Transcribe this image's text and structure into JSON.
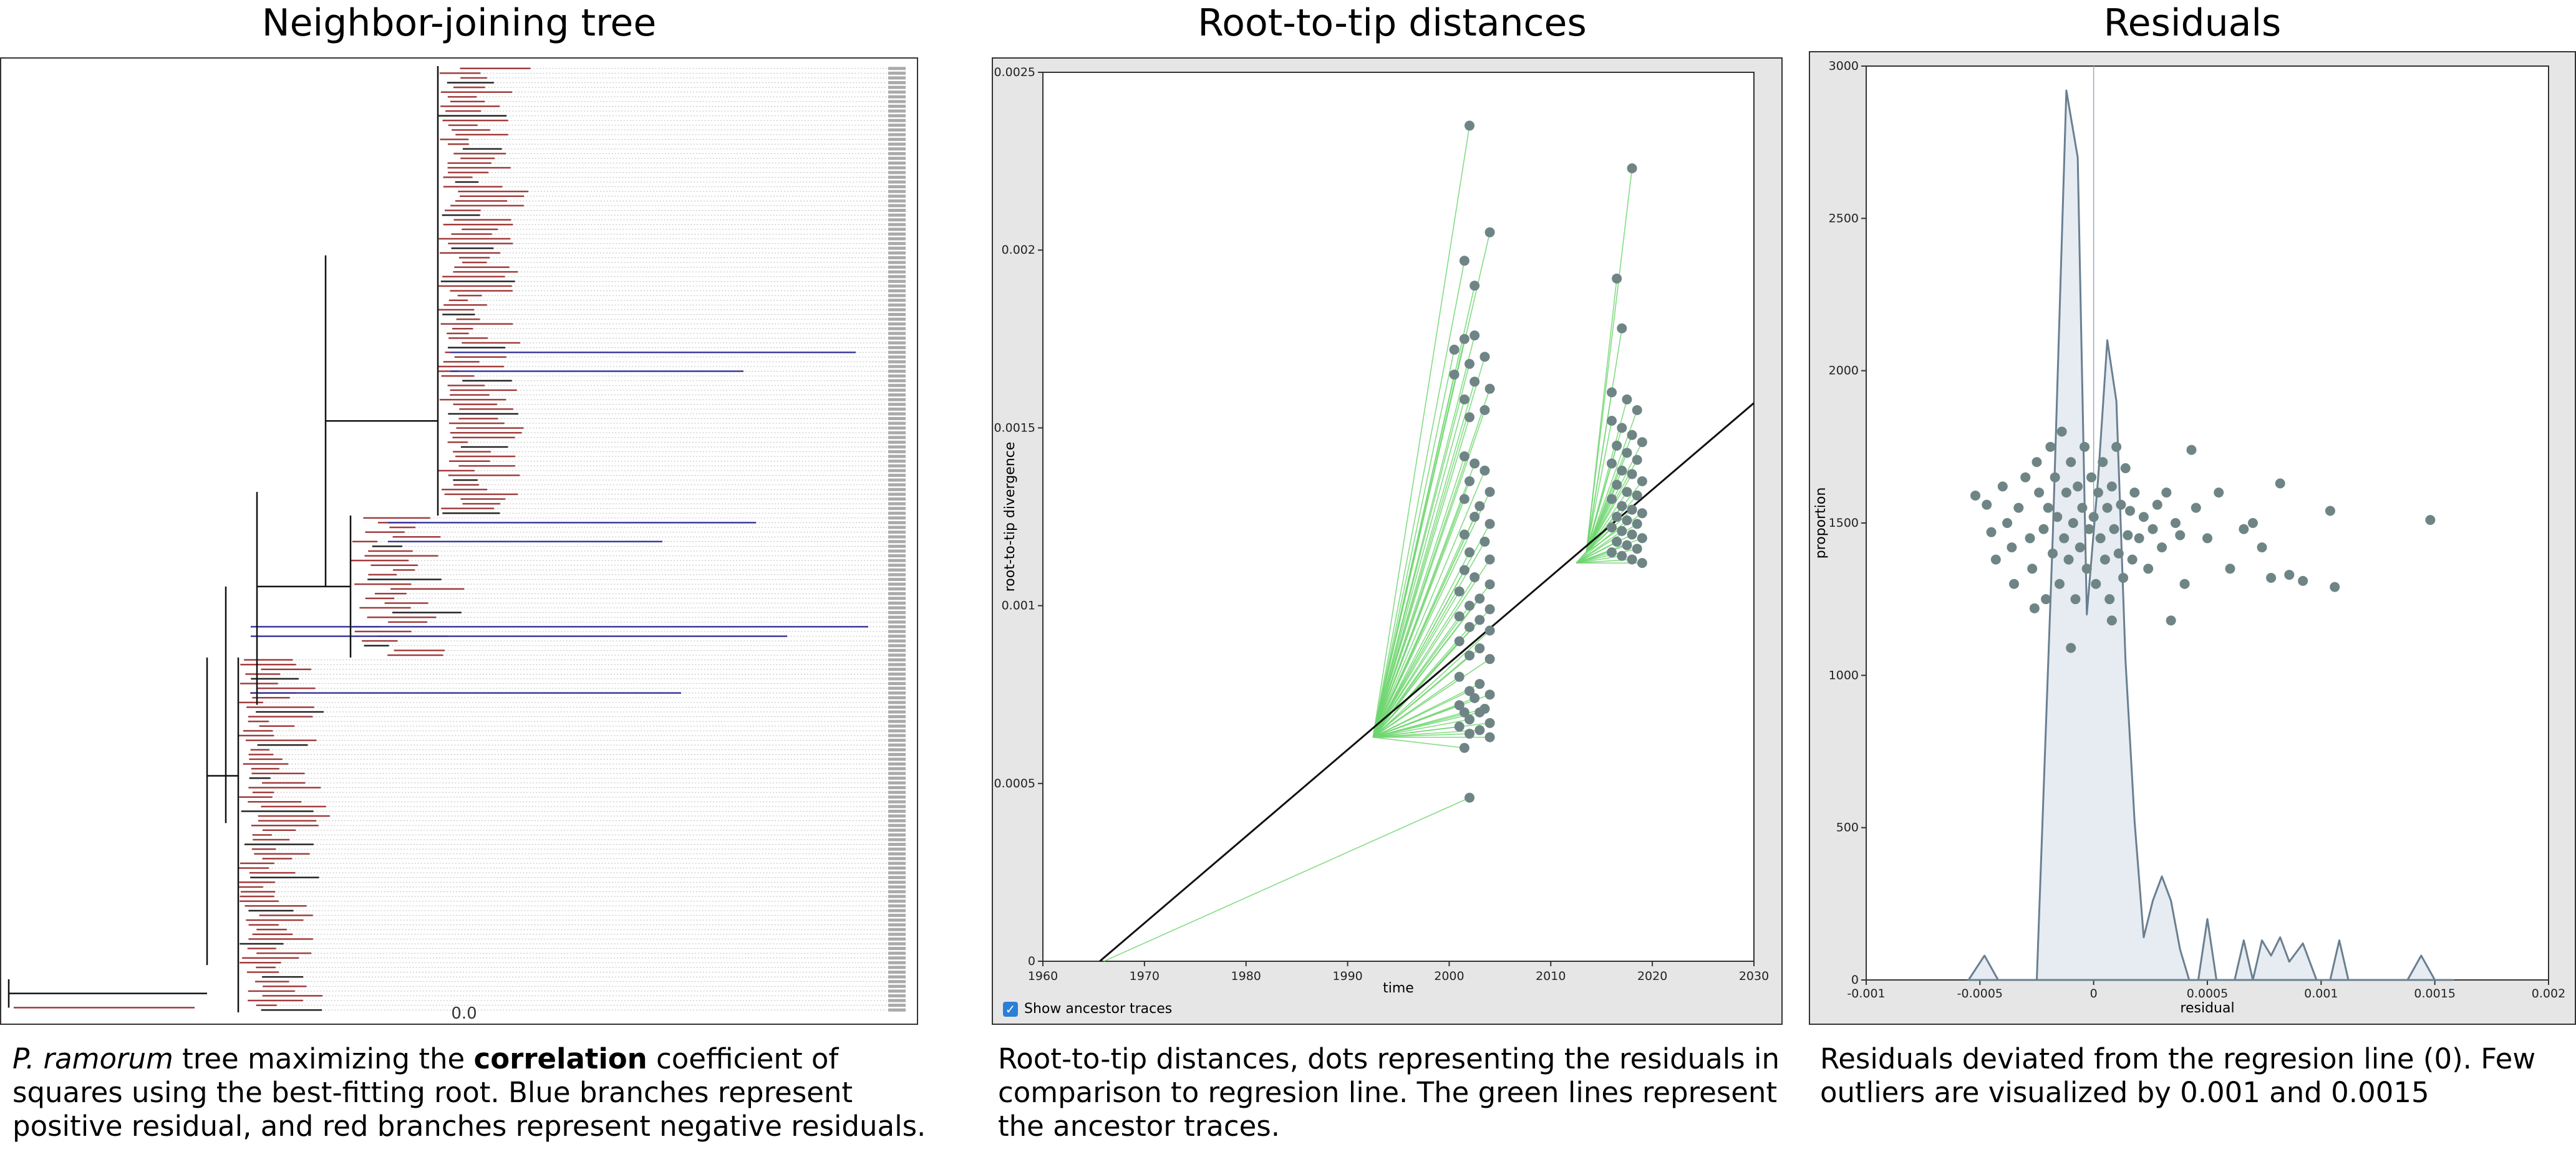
{
  "panels": {
    "tree": {
      "title": "Neighbor-joining tree",
      "scale_label": "0.0",
      "caption": {
        "italic": "P. ramorum",
        "pre": " tree maximizing the ",
        "bold": "correlation",
        "post": " coefficient of squares using the best-fitting root. Blue branches represent positive residual, and red branches represent negative residuals."
      }
    },
    "rtt": {
      "title": "Root-to-tip distances",
      "checkbox_label": "Show ancestor traces",
      "caption": "Root-to-tip distances, dots representing the residuals in comparison to regresion line. The green lines represent the ancestor traces."
    },
    "resid": {
      "title": "Residuals",
      "caption": "Residuals deviated from the regresion line (0). Few outliers are visualized by 0.001 and 0.0015"
    }
  },
  "colors": {
    "negative_branch": "#a03c3c",
    "positive_branch": "#3a3a9a",
    "trace": "#6fd66f",
    "dot": "#6f8585",
    "density_fill": "#e6ecf2",
    "density_line": "#6a7f91"
  },
  "chart_data": [
    {
      "type": "line",
      "subtype": "phylogenetic-tree",
      "title": "Neighbor-joining tree",
      "scale_bar": "0.0"
    },
    {
      "type": "scatter",
      "title": "Root-to-tip distances",
      "xlabel": "time",
      "ylabel": "root-to-tip divergence",
      "xlim": [
        1960,
        2030
      ],
      "ylim": [
        0,
        0.0025
      ],
      "xticks": [
        "1960",
        "1970",
        "1980",
        "1990",
        "2000",
        "2010",
        "2020",
        "2030"
      ],
      "yticks": [
        "0",
        "0.0005",
        "0.001",
        "0.0015",
        "0.002",
        "0.0025"
      ],
      "regression_line": [
        [
          1965.6,
          0
        ],
        [
          2030,
          0.00157
        ]
      ],
      "ancestor_nodes": [
        [
          1992.5,
          0.00063
        ],
        [
          2012.5,
          0.00112
        ],
        [
          2013.5,
          0.00115
        ]
      ],
      "points": [
        [
          2002,
          0.00235
        ],
        [
          2004,
          0.00205
        ],
        [
          2001.5,
          0.00197
        ],
        [
          2002.5,
          0.0019
        ],
        [
          2001.5,
          0.00175
        ],
        [
          2002.5,
          0.00176
        ],
        [
          2000.5,
          0.00172
        ],
        [
          2003.5,
          0.0017
        ],
        [
          2002,
          0.00168
        ],
        [
          2000.5,
          0.00165
        ],
        [
          2002.5,
          0.00163
        ],
        [
          2004,
          0.00161
        ],
        [
          2001.5,
          0.00158
        ],
        [
          2003.5,
          0.00155
        ],
        [
          2002,
          0.00153
        ],
        [
          2001.5,
          0.00142
        ],
        [
          2002.5,
          0.0014
        ],
        [
          2003.5,
          0.00138
        ],
        [
          2002,
          0.00135
        ],
        [
          2004,
          0.00132
        ],
        [
          2001.5,
          0.0013
        ],
        [
          2003,
          0.00128
        ],
        [
          2002.5,
          0.00125
        ],
        [
          2004,
          0.00123
        ],
        [
          2001.5,
          0.0012
        ],
        [
          2003.5,
          0.00118
        ],
        [
          2002,
          0.00115
        ],
        [
          2004,
          0.00113
        ],
        [
          2001.5,
          0.0011
        ],
        [
          2002.5,
          0.00108
        ],
        [
          2004,
          0.00106
        ],
        [
          2001,
          0.00104
        ],
        [
          2003,
          0.00102
        ],
        [
          2002,
          0.001
        ],
        [
          2004,
          0.00099
        ],
        [
          2001,
          0.00097
        ],
        [
          2003,
          0.00096
        ],
        [
          2002,
          0.00094
        ],
        [
          2004,
          0.00093
        ],
        [
          2001,
          0.0009
        ],
        [
          2003,
          0.00088
        ],
        [
          2002,
          0.00086
        ],
        [
          2004,
          0.00085
        ],
        [
          2001,
          0.0008
        ],
        [
          2003,
          0.00078
        ],
        [
          2002,
          0.00076
        ],
        [
          2004,
          0.00075
        ],
        [
          2001,
          0.00072
        ],
        [
          2003,
          0.0007
        ],
        [
          2002,
          0.00068
        ],
        [
          2004,
          0.00067
        ],
        [
          2001,
          0.00066
        ],
        [
          2003,
          0.00065
        ],
        [
          2002,
          0.00064
        ],
        [
          2004,
          0.00063
        ],
        [
          2001.5,
          0.0007
        ],
        [
          2002.5,
          0.00074
        ],
        [
          2003.5,
          0.00071
        ],
        [
          2001.5,
          0.0006
        ],
        [
          2002,
          0.00046
        ],
        [
          2018,
          0.00223
        ],
        [
          2016.5,
          0.00192
        ],
        [
          2017,
          0.00178
        ],
        [
          2016,
          0.0016
        ],
        [
          2017.5,
          0.00158
        ],
        [
          2018.5,
          0.00155
        ],
        [
          2016,
          0.00152
        ],
        [
          2017,
          0.0015
        ],
        [
          2018,
          0.00148
        ],
        [
          2019,
          0.00146
        ],
        [
          2016.5,
          0.00145
        ],
        [
          2017.5,
          0.00143
        ],
        [
          2018.5,
          0.00141
        ],
        [
          2016,
          0.0014
        ],
        [
          2017,
          0.00138
        ],
        [
          2018,
          0.00137
        ],
        [
          2019,
          0.00135
        ],
        [
          2016.5,
          0.00134
        ],
        [
          2017.5,
          0.00132
        ],
        [
          2018.5,
          0.00131
        ],
        [
          2016,
          0.0013
        ],
        [
          2017,
          0.00128
        ],
        [
          2018,
          0.00127
        ],
        [
          2019,
          0.00126
        ],
        [
          2016.5,
          0.00125
        ],
        [
          2017.5,
          0.00124
        ],
        [
          2018.5,
          0.00123
        ],
        [
          2016,
          0.00122
        ],
        [
          2017,
          0.00121
        ],
        [
          2018,
          0.0012
        ],
        [
          2019,
          0.00119
        ],
        [
          2016.5,
          0.00118
        ],
        [
          2017.5,
          0.00117
        ],
        [
          2018.5,
          0.00116
        ],
        [
          2016,
          0.00115
        ],
        [
          2017,
          0.00114
        ],
        [
          2018,
          0.00113
        ],
        [
          2019,
          0.00112
        ]
      ],
      "checkbox": "Show ancestor traces"
    },
    {
      "type": "area",
      "title": "Residuals",
      "xlabel": "residual",
      "ylabel": "proportion",
      "xlim": [
        -0.001,
        0.002
      ],
      "ylim": [
        0,
        3000
      ],
      "xticks": [
        "-0.001",
        "-0.0005",
        "0",
        "0.0005",
        "0.001",
        "0.0015",
        "0.002"
      ],
      "yticks": [
        "0",
        "500",
        "1000",
        "1500",
        "2000",
        "2500",
        "3000"
      ],
      "density": [
        [
          -0.00055,
          0
        ],
        [
          -0.00048,
          80
        ],
        [
          -0.00042,
          0
        ],
        [
          -0.00025,
          0
        ],
        [
          -0.00018,
          1450
        ],
        [
          -0.00012,
          2920
        ],
        [
          -7e-05,
          2700
        ],
        [
          -3e-05,
          1200
        ],
        [
          2e-05,
          1650
        ],
        [
          6e-05,
          2100
        ],
        [
          0.0001,
          1900
        ],
        [
          0.00014,
          1050
        ],
        [
          0.00018,
          520
        ],
        [
          0.00022,
          140
        ],
        [
          0.00026,
          260
        ],
        [
          0.0003,
          340
        ],
        [
          0.00034,
          260
        ],
        [
          0.00038,
          100
        ],
        [
          0.00042,
          0
        ],
        [
          0.00046,
          0
        ],
        [
          0.0005,
          200
        ],
        [
          0.00054,
          0
        ],
        [
          0.00062,
          0
        ],
        [
          0.00066,
          130
        ],
        [
          0.0007,
          0
        ],
        [
          0.00074,
          130
        ],
        [
          0.00078,
          80
        ],
        [
          0.00082,
          140
        ],
        [
          0.00086,
          60
        ],
        [
          0.00092,
          120
        ],
        [
          0.00098,
          0
        ],
        [
          0.00104,
          0
        ],
        [
          0.00108,
          130
        ],
        [
          0.00112,
          0
        ],
        [
          0.00138,
          0
        ],
        [
          0.00144,
          80
        ],
        [
          0.0015,
          0
        ],
        [
          0.00158,
          0
        ]
      ],
      "points": [
        [
          -0.00052,
          1590
        ],
        [
          -0.00047,
          1560
        ],
        [
          -0.00045,
          1470
        ],
        [
          -0.00043,
          1380
        ],
        [
          -0.0004,
          1620
        ],
        [
          -0.00038,
          1500
        ],
        [
          -0.00036,
          1420
        ],
        [
          -0.00035,
          1300
        ],
        [
          -0.00033,
          1550
        ],
        [
          -0.0003,
          1650
        ],
        [
          -0.00028,
          1450
        ],
        [
          -0.00027,
          1350
        ],
        [
          -0.00025,
          1700
        ],
        [
          -0.00024,
          1600
        ],
        [
          -0.00022,
          1480
        ],
        [
          -0.00021,
          1250
        ],
        [
          -0.0002,
          1550
        ],
        [
          -0.00019,
          1750
        ],
        [
          -0.00018,
          1400
        ],
        [
          -0.00017,
          1650
        ],
        [
          -0.00016,
          1520
        ],
        [
          -0.00015,
          1300
        ],
        [
          -0.00014,
          1800
        ],
        [
          -0.00013,
          1450
        ],
        [
          -0.00012,
          1600
        ],
        [
          -0.00011,
          1380
        ],
        [
          -0.0001,
          1700
        ],
        [
          -9e-05,
          1500
        ],
        [
          -8e-05,
          1250
        ],
        [
          -7e-05,
          1620
        ],
        [
          -6e-05,
          1420
        ],
        [
          -5e-05,
          1550
        ],
        [
          -4e-05,
          1750
        ],
        [
          -3e-05,
          1350
        ],
        [
          -2e-05,
          1480
        ],
        [
          -1e-05,
          1650
        ],
        [
          0,
          1520
        ],
        [
          1e-05,
          1300
        ],
        [
          2e-05,
          1600
        ],
        [
          3e-05,
          1450
        ],
        [
          4e-05,
          1700
        ],
        [
          5e-05,
          1380
        ],
        [
          6e-05,
          1550
        ],
        [
          7e-05,
          1250
        ],
        [
          8e-05,
          1620
        ],
        [
          9e-05,
          1480
        ],
        [
          0.0001,
          1750
        ],
        [
          0.00011,
          1400
        ],
        [
          0.00012,
          1560
        ],
        [
          0.00013,
          1320
        ],
        [
          0.00014,
          1680
        ],
        [
          0.00015,
          1460
        ],
        [
          0.00016,
          1540
        ],
        [
          0.00017,
          1380
        ],
        [
          0.00018,
          1600
        ],
        [
          0.0002,
          1450
        ],
        [
          0.00022,
          1520
        ],
        [
          0.00024,
          1350
        ],
        [
          0.00026,
          1480
        ],
        [
          0.00028,
          1560
        ],
        [
          0.0003,
          1420
        ],
        [
          0.00032,
          1600
        ],
        [
          0.00034,
          1180
        ],
        [
          0.00036,
          1500
        ],
        [
          0.00038,
          1460
        ],
        [
          0.0004,
          1300
        ],
        [
          0.00043,
          1740
        ],
        [
          0.00045,
          1550
        ],
        [
          0.0005,
          1450
        ],
        [
          0.00055,
          1600
        ],
        [
          0.0006,
          1350
        ],
        [
          0.00066,
          1480
        ],
        [
          0.0007,
          1500
        ],
        [
          0.00074,
          1420
        ],
        [
          0.00078,
          1320
        ],
        [
          0.00082,
          1630
        ],
        [
          0.00086,
          1330
        ],
        [
          0.00092,
          1310
        ],
        [
          0.00104,
          1540
        ],
        [
          0.00106,
          1290
        ],
        [
          0.00148,
          1510
        ],
        [
          -0.0001,
          1090
        ],
        [
          8e-05,
          1180
        ],
        [
          -0.00026,
          1220
        ]
      ]
    }
  ]
}
